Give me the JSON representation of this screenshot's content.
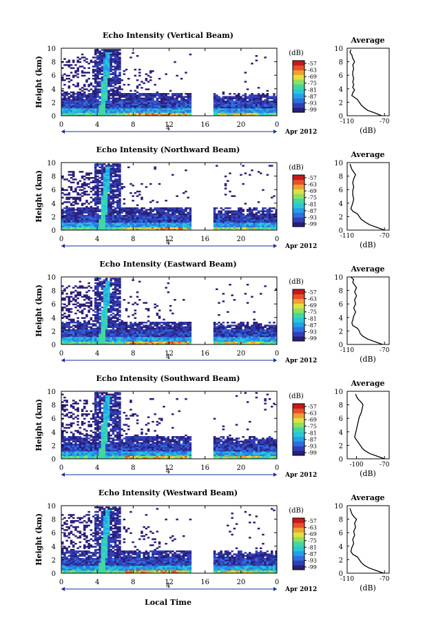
{
  "figure": {
    "xlabel": "Local Time",
    "date_label": "Apr 2012",
    "date_day": "4",
    "colorbar_unit": "(dB)",
    "profile_title": "Average",
    "profile_xlabel": "(dB)"
  },
  "chart_data": [
    {
      "type": "heatmap",
      "title": "Echo Intensity (Vertical Beam)",
      "ylabel": "Height (km)",
      "xlim": [
        0,
        24
      ],
      "ylim": [
        0,
        10
      ],
      "x_ticks": [
        "0",
        "4",
        "8",
        "12",
        "16",
        "20",
        "0"
      ],
      "y_ticks": [
        "0",
        "2",
        "4",
        "6",
        "8",
        "10"
      ],
      "colorbar": {
        "unit": "(dB)",
        "ticks": [
          "-57",
          "-63",
          "-69",
          "-75",
          "-81",
          "-87",
          "-93",
          "-99"
        ]
      },
      "data_gap_hours": [
        14.3,
        16.9
      ],
      "profile": {
        "title": "Average",
        "xlabel": "(dB)",
        "xticks": [
          "-110",
          "-70"
        ],
        "yticks": [
          "0",
          "2",
          "4",
          "6",
          "8",
          "10"
        ],
        "points": [
          [
            -73,
            0
          ],
          [
            -80,
            0.4
          ],
          [
            -88,
            0.8
          ],
          [
            -92,
            1.2
          ],
          [
            -95,
            1.6
          ],
          [
            -97,
            2.0
          ],
          [
            -99,
            2.4
          ],
          [
            -103,
            2.8
          ],
          [
            -105,
            3.0
          ],
          [
            -104,
            3.4
          ],
          [
            -102,
            3.8
          ],
          [
            -104,
            4.2
          ],
          [
            -103,
            4.6
          ],
          [
            -104,
            5.0
          ],
          [
            -103,
            5.5
          ],
          [
            -104,
            6.0
          ],
          [
            -104,
            6.5
          ],
          [
            -103,
            7.0
          ],
          [
            -104,
            7.5
          ],
          [
            -102,
            8.0
          ],
          [
            -104,
            8.5
          ],
          [
            -105,
            9.0
          ],
          [
            -107,
            9.4
          ],
          [
            -106,
            9.8
          ]
        ]
      }
    },
    {
      "type": "heatmap",
      "title": "Echo Intensity (Northward Beam)",
      "ylabel": "Height (km)",
      "xlim": [
        0,
        24
      ],
      "ylim": [
        0,
        10
      ],
      "x_ticks": [
        "0",
        "4",
        "8",
        "12",
        "16",
        "20",
        "0"
      ],
      "y_ticks": [
        "0",
        "2",
        "4",
        "6",
        "8",
        "10"
      ],
      "colorbar": {
        "unit": "(dB)",
        "ticks": [
          "-57",
          "-63",
          "-69",
          "-75",
          "-81",
          "-87",
          "-93",
          "-99"
        ]
      },
      "data_gap_hours": [
        14.3,
        16.9
      ],
      "profile": {
        "title": "Average",
        "xlabel": "(dB)",
        "xticks": [
          "-110",
          "-70"
        ],
        "yticks": [
          "0",
          "2",
          "4",
          "6",
          "8",
          "10"
        ],
        "points": [
          [
            -70,
            0
          ],
          [
            -78,
            0.4
          ],
          [
            -86,
            0.8
          ],
          [
            -91,
            1.2
          ],
          [
            -95,
            1.6
          ],
          [
            -97,
            2.0
          ],
          [
            -99,
            2.4
          ],
          [
            -104,
            2.8
          ],
          [
            -106,
            3.2
          ],
          [
            -105,
            3.6
          ],
          [
            -104,
            4.0
          ],
          [
            -103,
            4.6
          ],
          [
            -104,
            5.2
          ],
          [
            -104,
            5.8
          ],
          [
            -103,
            6.4
          ],
          [
            -104,
            7.0
          ],
          [
            -103,
            7.6
          ],
          [
            -101,
            8.2
          ],
          [
            -103,
            8.6
          ],
          [
            -105,
            9.0
          ],
          [
            -106,
            9.4
          ],
          [
            -107,
            9.8
          ]
        ]
      }
    },
    {
      "type": "heatmap",
      "title": "Echo Intensity (Eastward Beam)",
      "ylabel": "Height (km)",
      "xlim": [
        0,
        24
      ],
      "ylim": [
        0,
        10
      ],
      "x_ticks": [
        "0",
        "4",
        "8",
        "12",
        "16",
        "20",
        "0"
      ],
      "y_ticks": [
        "0",
        "2",
        "4",
        "6",
        "8",
        "10"
      ],
      "colorbar": {
        "unit": "(dB)",
        "ticks": [
          "-57",
          "-63",
          "-69",
          "-75",
          "-81",
          "-87",
          "-93",
          "-99"
        ]
      },
      "data_gap_hours": [
        14.3,
        16.9
      ],
      "profile": {
        "title": "Average",
        "xlabel": "(dB)",
        "xticks": [
          "-110",
          "-70"
        ],
        "yticks": [
          "0",
          "2",
          "4",
          "6",
          "8",
          "10"
        ],
        "points": [
          [
            -72,
            0
          ],
          [
            -80,
            0.4
          ],
          [
            -88,
            0.8
          ],
          [
            -93,
            1.2
          ],
          [
            -96,
            1.6
          ],
          [
            -97,
            2.0
          ],
          [
            -99,
            2.4
          ],
          [
            -104,
            2.8
          ],
          [
            -105,
            3.2
          ],
          [
            -104,
            3.6
          ],
          [
            -103,
            4.2
          ],
          [
            -101,
            4.8
          ],
          [
            -103,
            5.4
          ],
          [
            -101,
            6.0
          ],
          [
            -102,
            6.6
          ],
          [
            -100,
            7.2
          ],
          [
            -102,
            7.8
          ],
          [
            -100,
            8.4
          ],
          [
            -102,
            8.8
          ],
          [
            -104,
            9.2
          ],
          [
            -103,
            9.6
          ],
          [
            -106,
            10.0
          ]
        ]
      }
    },
    {
      "type": "heatmap",
      "title": "Echo Intensity (Southward Beam)",
      "ylabel": "Height (km)",
      "xlim": [
        0,
        24
      ],
      "ylim": [
        0,
        10
      ],
      "x_ticks": [
        "0",
        "4",
        "8",
        "12",
        "16",
        "20",
        "0"
      ],
      "y_ticks": [
        "0",
        "2",
        "4",
        "6",
        "8",
        "10"
      ],
      "colorbar": {
        "unit": "(dB)",
        "ticks": [
          "-57",
          "-63",
          "-69",
          "-75",
          "-81",
          "-87",
          "-93",
          "-99"
        ]
      },
      "data_gap_hours": [
        14.3,
        16.9
      ],
      "profile": {
        "title": "Average",
        "xlabel": "(dB)",
        "xticks": [
          "-100",
          "-70"
        ],
        "yticks": [
          "0",
          "2",
          "4",
          "6",
          "8",
          "10"
        ],
        "points": [
          [
            -70,
            0
          ],
          [
            -78,
            0.4
          ],
          [
            -86,
            0.8
          ],
          [
            -91,
            1.2
          ],
          [
            -94,
            1.6
          ],
          [
            -96,
            2.0
          ],
          [
            -98,
            2.4
          ],
          [
            -100,
            2.8
          ],
          [
            -102,
            3.2
          ],
          [
            -101,
            3.8
          ],
          [
            -100,
            4.4
          ],
          [
            -99,
            5.0
          ],
          [
            -98,
            5.6
          ],
          [
            -97,
            6.2
          ],
          [
            -95,
            6.8
          ],
          [
            -94,
            7.4
          ],
          [
            -93,
            8.0
          ],
          [
            -95,
            8.4
          ],
          [
            -98,
            8.8
          ],
          [
            -100,
            9.2
          ],
          [
            -101,
            9.6
          ]
        ]
      }
    },
    {
      "type": "heatmap",
      "title": "Echo Intensity (Westward Beam)",
      "ylabel": "Height (km)",
      "xlim": [
        0,
        24
      ],
      "ylim": [
        0,
        10
      ],
      "x_ticks": [
        "0",
        "4",
        "8",
        "12",
        "16",
        "20",
        "0"
      ],
      "y_ticks": [
        "0",
        "2",
        "4",
        "6",
        "8",
        "10"
      ],
      "colorbar": {
        "unit": "(dB)",
        "ticks": [
          "-57",
          "-63",
          "-69",
          "-75",
          "-81",
          "-87",
          "-93",
          "-99"
        ]
      },
      "data_gap_hours": [
        14.3,
        16.9
      ],
      "profile": {
        "title": "Average",
        "xlabel": "(dB)",
        "xticks": [
          "-110",
          "-70"
        ],
        "yticks": [
          "0",
          "2",
          "4",
          "6",
          "8",
          "10"
        ],
        "points": [
          [
            -71,
            0
          ],
          [
            -79,
            0.4
          ],
          [
            -87,
            0.8
          ],
          [
            -92,
            1.2
          ],
          [
            -95,
            1.6
          ],
          [
            -97,
            2.0
          ],
          [
            -99,
            2.4
          ],
          [
            -104,
            2.8
          ],
          [
            -106,
            3.2
          ],
          [
            -105,
            3.8
          ],
          [
            -103,
            4.4
          ],
          [
            -104,
            5.0
          ],
          [
            -102,
            5.6
          ],
          [
            -103,
            6.2
          ],
          [
            -101,
            6.8
          ],
          [
            -102,
            7.4
          ],
          [
            -100,
            8.0
          ],
          [
            -103,
            8.4
          ],
          [
            -105,
            8.8
          ],
          [
            -106,
            9.2
          ],
          [
            -107,
            9.6
          ]
        ]
      }
    }
  ],
  "colors": {
    "colormap": [
      "#2a1e78",
      "#3040b8",
      "#2f6fe0",
      "#22a0e8",
      "#29c8d8",
      "#40d8a0",
      "#8ee060",
      "#e0e040",
      "#f0a030",
      "#e85028",
      "#c81818"
    ],
    "axis": "#000000",
    "date_arrow": "#1a2e9a"
  }
}
